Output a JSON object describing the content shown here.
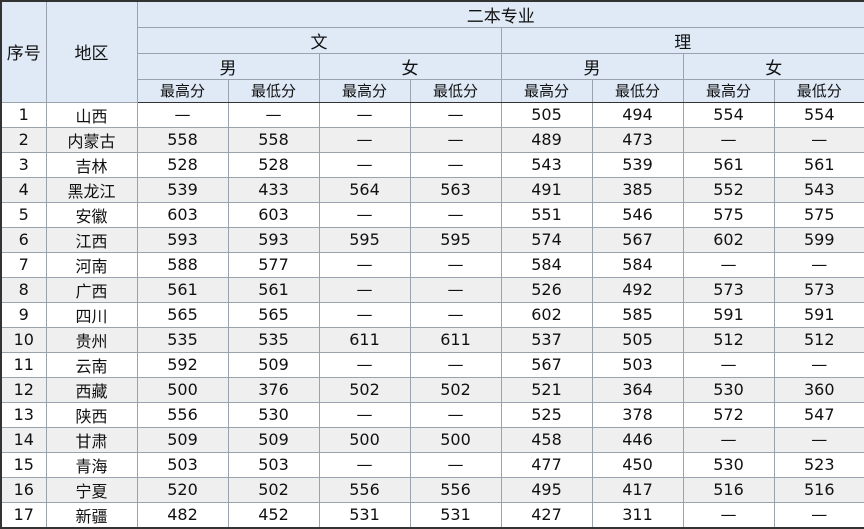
{
  "header": {
    "seq": "序号",
    "region": "地区",
    "group": "二本专业",
    "wen": "文",
    "li": "理",
    "male": "男",
    "female": "女",
    "max": "最高分",
    "min": "最低分"
  },
  "rows": [
    [
      "1",
      "山西",
      "—",
      "—",
      "—",
      "—",
      "505",
      "494",
      "554",
      "554"
    ],
    [
      "2",
      "内蒙古",
      "558",
      "558",
      "—",
      "—",
      "489",
      "473",
      "—",
      "—"
    ],
    [
      "3",
      "吉林",
      "528",
      "528",
      "—",
      "—",
      "543",
      "539",
      "561",
      "561"
    ],
    [
      "4",
      "黑龙江",
      "539",
      "433",
      "564",
      "563",
      "491",
      "385",
      "552",
      "543"
    ],
    [
      "5",
      "安徽",
      "603",
      "603",
      "—",
      "—",
      "551",
      "546",
      "575",
      "575"
    ],
    [
      "6",
      "江西",
      "593",
      "593",
      "595",
      "595",
      "574",
      "567",
      "602",
      "599"
    ],
    [
      "7",
      "河南",
      "588",
      "577",
      "—",
      "—",
      "584",
      "584",
      "—",
      "—"
    ],
    [
      "8",
      "广西",
      "561",
      "561",
      "—",
      "—",
      "526",
      "492",
      "573",
      "573"
    ],
    [
      "9",
      "四川",
      "565",
      "565",
      "—",
      "—",
      "602",
      "585",
      "591",
      "591"
    ],
    [
      "10",
      "贵州",
      "535",
      "535",
      "611",
      "611",
      "537",
      "505",
      "512",
      "512"
    ],
    [
      "11",
      "云南",
      "592",
      "509",
      "—",
      "—",
      "567",
      "503",
      "—",
      "—"
    ],
    [
      "12",
      "西藏",
      "500",
      "376",
      "502",
      "502",
      "521",
      "364",
      "530",
      "360"
    ],
    [
      "13",
      "陕西",
      "556",
      "530",
      "—",
      "—",
      "525",
      "378",
      "572",
      "547"
    ],
    [
      "14",
      "甘肃",
      "509",
      "509",
      "500",
      "500",
      "458",
      "446",
      "—",
      "—"
    ],
    [
      "15",
      "青海",
      "503",
      "503",
      "—",
      "—",
      "477",
      "450",
      "530",
      "523"
    ],
    [
      "16",
      "宁夏",
      "520",
      "502",
      "556",
      "556",
      "495",
      "417",
      "516",
      "516"
    ],
    [
      "17",
      "新疆",
      "482",
      "452",
      "531",
      "531",
      "427",
      "311",
      "—",
      "—"
    ]
  ]
}
